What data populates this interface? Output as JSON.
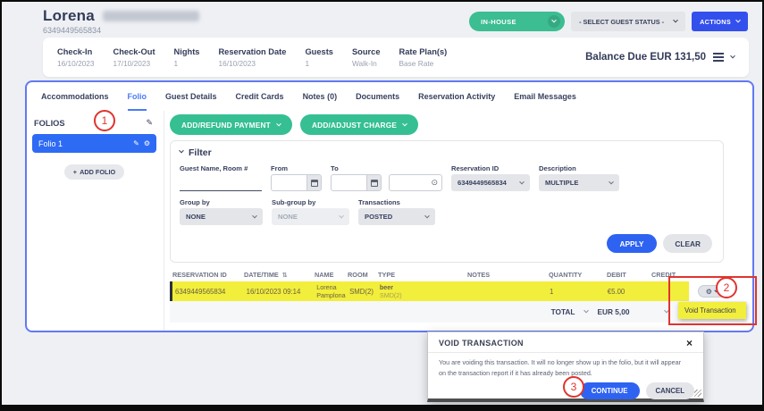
{
  "header": {
    "guest_first_name": "Lorena",
    "reservation_number": "6349449565834",
    "status_pill": "IN-HOUSE",
    "guest_status_select": "- SELECT GUEST STATUS -",
    "actions_button": "ACTIONS"
  },
  "summary": {
    "fields": [
      {
        "label": "Check-In",
        "value": "16/10/2023"
      },
      {
        "label": "Check-Out",
        "value": "17/10/2023"
      },
      {
        "label": "Nights",
        "value": "1"
      },
      {
        "label": "Reservation Date",
        "value": "16/10/2023"
      },
      {
        "label": "Guests",
        "value": "1"
      },
      {
        "label": "Source",
        "value": "Walk-In"
      },
      {
        "label": "Rate Plan(s)",
        "value": "Base Rate"
      }
    ],
    "balance_due": "Balance Due EUR 131,50"
  },
  "tabs": [
    {
      "label": "Accommodations"
    },
    {
      "label": "Folio"
    },
    {
      "label": "Guest Details"
    },
    {
      "label": "Credit Cards"
    },
    {
      "label": "Notes (0)"
    },
    {
      "label": "Documents"
    },
    {
      "label": "Reservation Activity"
    },
    {
      "label": "Email Messages"
    }
  ],
  "sidebar": {
    "title": "FOLIOS",
    "folio_item": "Folio 1",
    "add_folio_button": "ADD FOLIO"
  },
  "folio": {
    "add_refund_payment_button": "ADD/REFUND PAYMENT",
    "add_adjust_charge_button": "ADD/ADJUST CHARGE",
    "filter": {
      "title": "Filter",
      "labels": {
        "guest_name": "Guest Name, Room #",
        "from": "From",
        "to": "To",
        "reservation_id": "Reservation ID",
        "description": "Description",
        "group_by": "Group by",
        "sub_group_by": "Sub-group by",
        "transactions": "Transactions"
      },
      "values": {
        "reservation_id": "6349449565834",
        "description": "MULTIPLE",
        "group_by": "NONE",
        "sub_group_by": "NONE",
        "transactions": "POSTED"
      },
      "apply_button": "APPLY",
      "clear_button": "CLEAR"
    },
    "table": {
      "headers": [
        "RESERVATION ID",
        "DATE/TIME",
        "NAME",
        "ROOM",
        "TYPE",
        "NOTES",
        "QUANTITY",
        "DEBIT",
        "CREDIT"
      ],
      "row": {
        "reservation_id": "6349449565834",
        "date_time": "16/10/2023 09:14",
        "name_line1": "Lorena",
        "name_line2": "Pamplona",
        "room": "SMD(2)",
        "type_line1": "beer",
        "type_line2": "SMD(2)",
        "notes": "",
        "quantity": "1",
        "debit": "€5.00",
        "credit": ""
      },
      "total_label": "TOTAL",
      "total_debit": "EUR 5,00",
      "total_credit_partial": "EU"
    },
    "void_menu_item": "Void Transaction"
  },
  "dialog": {
    "title": "VOID TRANSACTION",
    "body": "You are voiding this transaction. It will no longer show up in the folio, but it will appear on the transaction report if it has already been posted.",
    "continue_button": "CONTINUE",
    "cancel_button": "CANCEL"
  },
  "annotations": {
    "step1": "1",
    "step2": "2",
    "step3": "3"
  },
  "icons": {
    "pencil": "✎",
    "gear": "⚙",
    "sort_updown": "⇅",
    "clock": "⊙",
    "close": "×",
    "plus": "+",
    "hamburger": "css-bars",
    "chevron_down": "css-chevron",
    "calendar": "css-calendar"
  },
  "colors": {
    "green": "#35bf92",
    "blue": "#2e63f2",
    "tab_active_blue": "#4a7bf7",
    "folio_selected_blue": "#2e6bf4",
    "yellow_highlight": "#f2ee3c",
    "annotation_red": "#e0342f",
    "navy_text": "#323b58"
  }
}
